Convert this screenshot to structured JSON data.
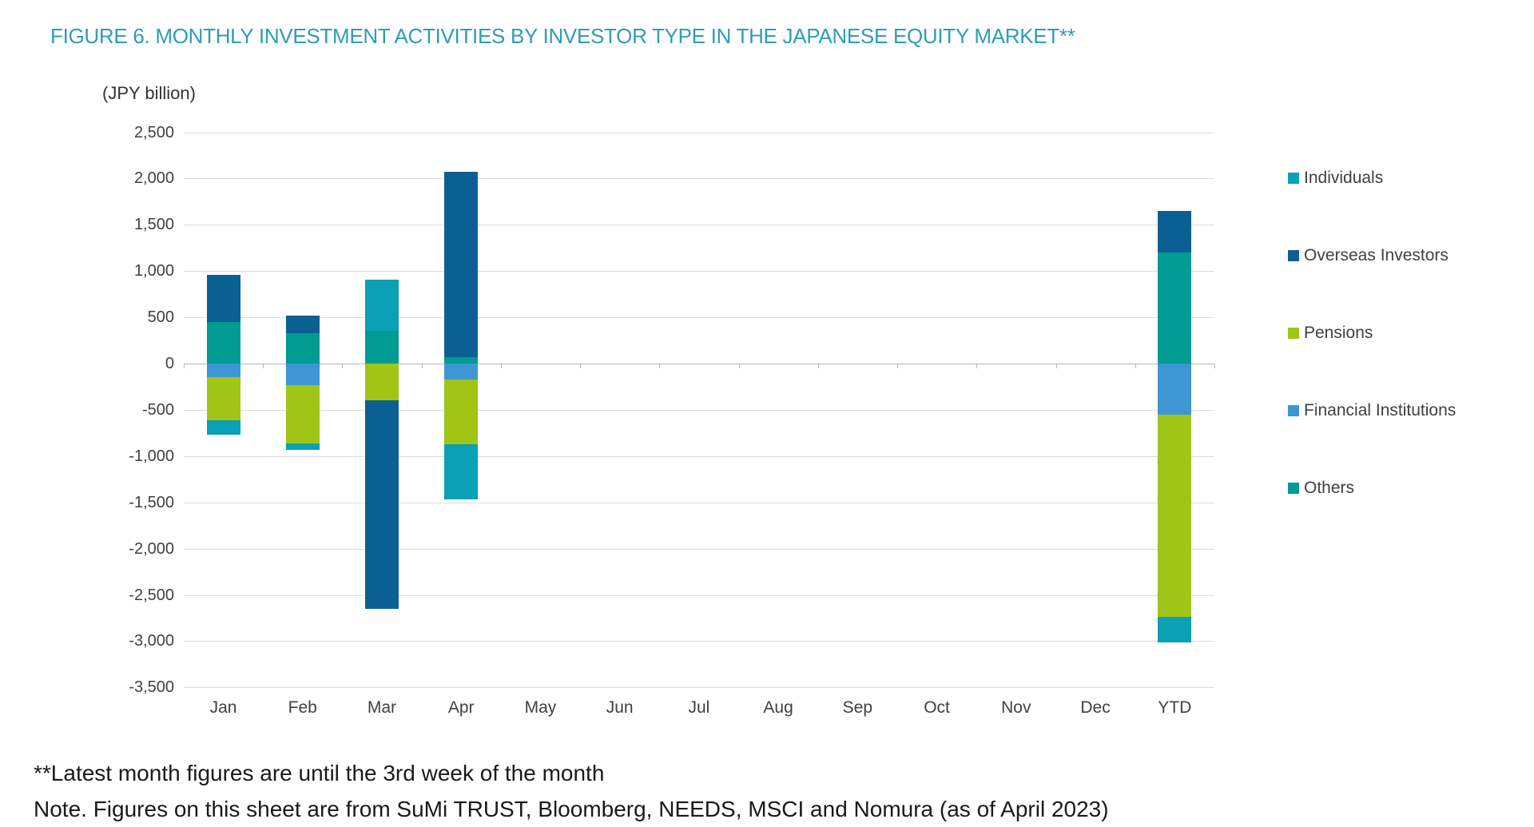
{
  "title": "FIGURE 6. MONTHLY INVESTMENT ACTIVITIES BY INVESTOR TYPE IN THE JAPANESE EQUITY MARKET**",
  "axis_unit_label": "(JPY billion)",
  "footnotes": {
    "line1": "**Latest month figures are until the 3rd week of the month",
    "line2": "Note. Figures on this sheet are from SuMi TRUST, Bloomberg, NEEDS, MSCI and Nomura (as of April 2023)"
  },
  "colors": {
    "title": "#2F9CB7",
    "gridline": "#DCDCDC",
    "zero_axis": "#B7B7B7",
    "axis_text": "#404040",
    "footnote_text": "#1A1A1A",
    "individuals": "#0AA0B6",
    "overseas_investors": "#0B6093",
    "pensions": "#A0C517",
    "financial_institutions": "#3E96D2",
    "others": "#009B93"
  },
  "chart_data": {
    "type": "bar",
    "stacked": true,
    "title": "FIGURE 6. MONTHLY INVESTMENT ACTIVITIES BY INVESTOR TYPE IN THE JAPANESE EQUITY MARKET**",
    "ylabel": "(JPY billion)",
    "xlabel": "",
    "grid": true,
    "legend_position": "right",
    "ylim": [
      -3500,
      2500
    ],
    "ytick_step": 500,
    "categories": [
      "Jan",
      "Feb",
      "Mar",
      "Apr",
      "May",
      "Jun",
      "Jul",
      "Aug",
      "Sep",
      "Oct",
      "Nov",
      "Dec",
      "YTD"
    ],
    "series": [
      {
        "name": "Individuals",
        "color": "#0AA0B6",
        "values": [
          -160,
          -70,
          560,
          -600,
          null,
          null,
          null,
          null,
          null,
          null,
          null,
          null,
          -270
        ]
      },
      {
        "name": "Overseas Investors",
        "color": "#0B6093",
        "values": [
          510,
          190,
          -2250,
          2000,
          null,
          null,
          null,
          null,
          null,
          null,
          null,
          null,
          450
        ]
      },
      {
        "name": "Pensions",
        "color": "#A0C517",
        "values": [
          -460,
          -630,
          -400,
          -700,
          null,
          null,
          null,
          null,
          null,
          null,
          null,
          null,
          -2190
        ]
      },
      {
        "name": "Financial Institutions",
        "color": "#3E96D2",
        "values": [
          -150,
          -230,
          0,
          -170,
          null,
          null,
          null,
          null,
          null,
          null,
          null,
          null,
          -550
        ]
      },
      {
        "name": "Others",
        "color": "#009B93",
        "values": [
          450,
          330,
          350,
          70,
          null,
          null,
          null,
          null,
          null,
          null,
          null,
          null,
          1200
        ]
      }
    ],
    "stack_order_from_axis": [
      "Others",
      "Financial Institutions",
      "Pensions",
      "Overseas Investors",
      "Individuals"
    ]
  }
}
